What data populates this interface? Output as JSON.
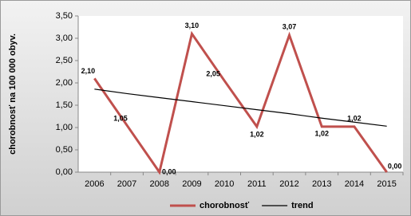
{
  "chart_data": {
    "type": "line",
    "y_label": "chorobnosť na 100 000 obyv.",
    "categories": [
      "2006",
      "2007",
      "2008",
      "2009",
      "2010",
      "2011",
      "2012",
      "2013",
      "2014",
      "2015"
    ],
    "series": [
      {
        "name": "chorobnosť",
        "color": "#c0504d",
        "values": [
          2.1,
          1.05,
          0.0,
          3.1,
          2.05,
          1.02,
          3.07,
          1.02,
          1.02,
          0.0
        ],
        "value_labels": [
          "2,10",
          "1,05",
          "0,00",
          "3,10",
          "2,05",
          "1,02",
          "3,07",
          "1,02",
          "1,02",
          "0,00"
        ]
      },
      {
        "name": "trend",
        "color": "#000000",
        "values": [
          1.86,
          1.76,
          1.67,
          1.58,
          1.49,
          1.4,
          1.31,
          1.21,
          1.12,
          1.03
        ]
      }
    ],
    "ylim": [
      0,
      3.5
    ],
    "yticks": [
      {
        "value": 0,
        "label": "0,00"
      },
      {
        "value": 0.5,
        "label": "0,50"
      },
      {
        "value": 1,
        "label": "1,00"
      },
      {
        "value": 1.5,
        "label": "1,50"
      },
      {
        "value": 2,
        "label": "2,00"
      },
      {
        "value": 2.5,
        "label": "2,50"
      },
      {
        "value": 3,
        "label": "3,00"
      },
      {
        "value": 3.5,
        "label": "3,50"
      }
    ],
    "legend": "bottom"
  }
}
